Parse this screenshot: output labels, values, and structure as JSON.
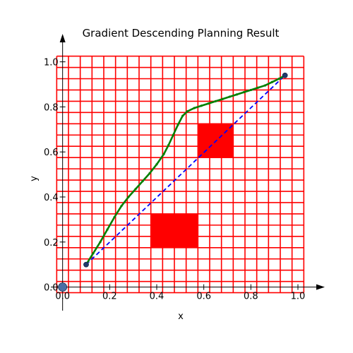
{
  "chart_data": {
    "type": "line",
    "title": "Gradient Descending Planning Result",
    "xlabel": "x",
    "ylabel": "y",
    "xlim": [
      -0.02,
      1.03
    ],
    "ylim": [
      -0.02,
      1.03
    ],
    "grid": false,
    "xticks": [
      0.0,
      0.2,
      0.4,
      0.6,
      0.8,
      1.0
    ],
    "yticks": [
      0.0,
      0.2,
      0.4,
      0.6,
      0.8,
      1.0
    ],
    "tick_labels": [
      "0.0",
      "0.2",
      "0.4",
      "0.6",
      "0.8",
      "1.0"
    ],
    "cell_grid": {
      "x_edges": [
        -0.025,
        0.025,
        0.075,
        0.125,
        0.175,
        0.225,
        0.275,
        0.325,
        0.375,
        0.425,
        0.475,
        0.525,
        0.575,
        0.625,
        0.675,
        0.725,
        0.775,
        0.825,
        0.875,
        0.925,
        0.975,
        1.025
      ],
      "y_edges": [
        -0.025,
        0.025,
        0.075,
        0.125,
        0.175,
        0.225,
        0.275,
        0.325,
        0.375,
        0.425,
        0.475,
        0.525,
        0.575,
        0.625,
        0.675,
        0.725,
        0.775,
        0.825,
        0.875,
        0.925,
        0.975,
        1.025
      ],
      "color": "#ff0000"
    },
    "obstacles": [
      {
        "x0": 0.375,
        "x1": 0.575,
        "y0": 0.175,
        "y1": 0.325,
        "color": "#ff0000"
      },
      {
        "x0": 0.575,
        "x1": 0.725,
        "y0": 0.575,
        "y1": 0.725,
        "color": "#ff0000"
      }
    ],
    "series": [
      {
        "style": "dashed",
        "color": "#0000ff",
        "x": [
          0.1,
          0.945
        ],
        "y": [
          0.1,
          0.94
        ]
      },
      {
        "style": "solid",
        "color": "#008000",
        "x": [
          0.1,
          0.13,
          0.16,
          0.19,
          0.22,
          0.25,
          0.28,
          0.31,
          0.34,
          0.37,
          0.4,
          0.43,
          0.45,
          0.47,
          0.49,
          0.51,
          0.53,
          0.56,
          0.59,
          0.62,
          0.65,
          0.68,
          0.71,
          0.74,
          0.77,
          0.8,
          0.83,
          0.86,
          0.89,
          0.92,
          0.945
        ],
        "y": [
          0.1,
          0.15,
          0.2,
          0.255,
          0.31,
          0.36,
          0.4,
          0.435,
          0.47,
          0.505,
          0.545,
          0.59,
          0.63,
          0.675,
          0.72,
          0.76,
          0.78,
          0.795,
          0.805,
          0.815,
          0.825,
          0.835,
          0.845,
          0.855,
          0.865,
          0.875,
          0.885,
          0.895,
          0.91,
          0.925,
          0.94
        ]
      }
    ],
    "points": [
      {
        "name": "start",
        "x": 0.1,
        "y": 0.1,
        "color": "#1f3a6b"
      },
      {
        "name": "goal",
        "x": 0.945,
        "y": 0.94,
        "color": "#1f3a6b"
      },
      {
        "name": "origin",
        "x": 0.0,
        "y": 0.0,
        "color": "#4a6fa5"
      }
    ]
  }
}
